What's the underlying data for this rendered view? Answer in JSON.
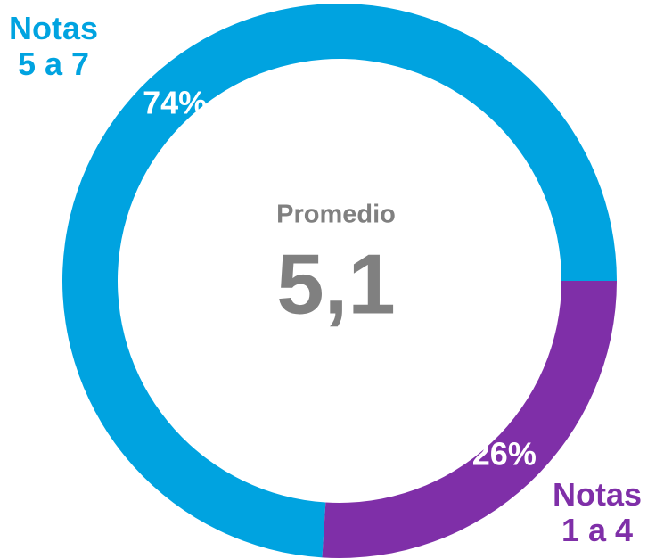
{
  "chart_data": {
    "type": "pie",
    "categories": [
      "Notas\n1 a 4",
      "Notas\n5 a 7"
    ],
    "values": [
      26,
      74
    ],
    "value_labels": [
      "26%",
      "74%"
    ],
    "colors": [
      "#7f2fa8",
      "#00a3e0"
    ],
    "donut": true,
    "start_angle": 90,
    "direction": "clockwise",
    "center_title": "Promedio",
    "center_value": "5,1"
  }
}
